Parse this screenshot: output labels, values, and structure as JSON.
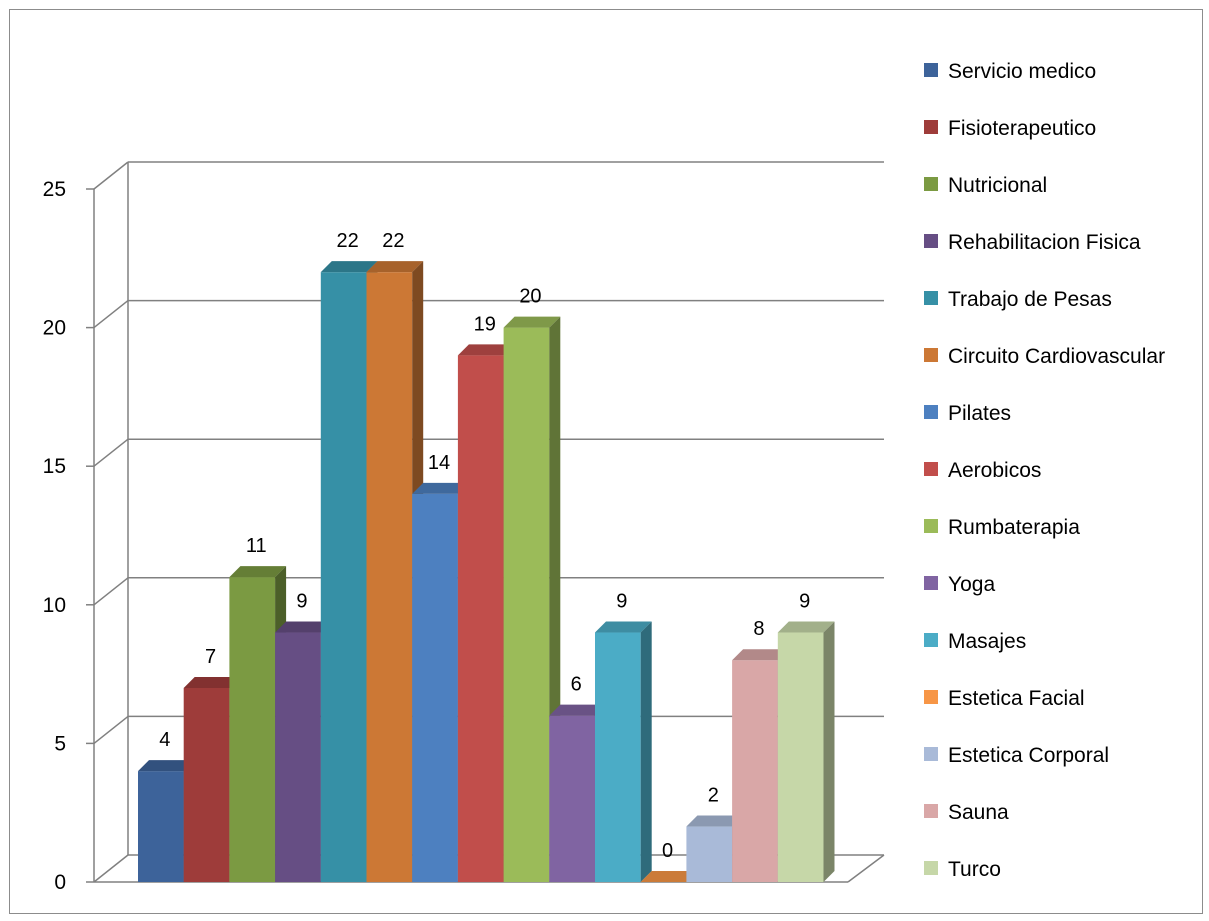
{
  "chart_data": {
    "type": "bar",
    "title": "",
    "xlabel": "",
    "ylabel": "",
    "ylim": [
      0,
      25
    ],
    "y_ticks": [
      0,
      5,
      10,
      15,
      20,
      25
    ],
    "grid": true,
    "style": "3d-clustered-column",
    "legend_position": "right",
    "categories": [
      ""
    ],
    "series": [
      {
        "name": "Servicio medico",
        "values": [
          4
        ],
        "color": "#3D639A"
      },
      {
        "name": "Fisioterapeutico",
        "values": [
          7
        ],
        "color": "#9E3C3A"
      },
      {
        "name": "Nutricional",
        "values": [
          11
        ],
        "color": "#7B9A42"
      },
      {
        "name": "Rehabilitacion Fisica",
        "values": [
          9
        ],
        "color": "#664E84"
      },
      {
        "name": "Trabajo de Pesas",
        "values": [
          22
        ],
        "color": "#3690A6"
      },
      {
        "name": "Circuito Cardiovascular",
        "values": [
          22
        ],
        "color": "#CC7835"
      },
      {
        "name": "Pilates",
        "values": [
          14
        ],
        "color": "#4D80C0"
      },
      {
        "name": "Aerobicos",
        "values": [
          19
        ],
        "color": "#C14E4B"
      },
      {
        "name": "Rumbaterapia",
        "values": [
          20
        ],
        "color": "#9BBB59"
      },
      {
        "name": "Yoga",
        "values": [
          6
        ],
        "color": "#8064A2"
      },
      {
        "name": "Masajes",
        "values": [
          9
        ],
        "color": "#4BACC6"
      },
      {
        "name": "Estetica Facial",
        "values": [
          0
        ],
        "color": "#F79646"
      },
      {
        "name": "Estetica Corporal",
        "values": [
          2
        ],
        "color": "#A9BAD8"
      },
      {
        "name": "Sauna",
        "values": [
          8
        ],
        "color": "#D9A7A7"
      },
      {
        "name": "Turco",
        "values": [
          9
        ],
        "color": "#C6D7A8"
      }
    ]
  }
}
